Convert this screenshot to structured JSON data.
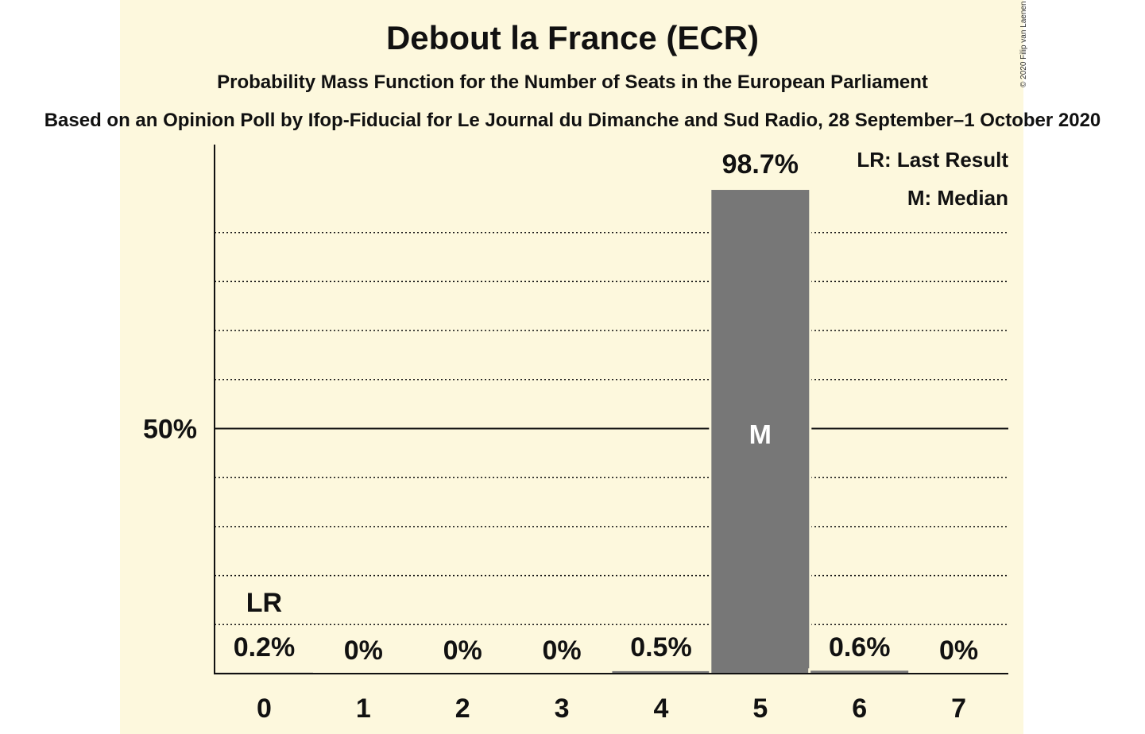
{
  "title": "Debout la France (ECR)",
  "subtitle": "Probability Mass Function for the Number of Seats in the European Parliament",
  "source": "Based on an Opinion Poll by Ifop-Fiducial for Le Journal du Dimanche and Sud Radio, 28 September–1 October 2020",
  "copyright": "© 2020 Filip van Laenen",
  "colors": {
    "background": "#fdf8dd",
    "bar": "#777777",
    "text": "#111111"
  },
  "chart_data": {
    "type": "bar",
    "categories": [
      "0",
      "1",
      "2",
      "3",
      "4",
      "5",
      "6",
      "7"
    ],
    "values": [
      0.2,
      0,
      0,
      0,
      0.5,
      98.7,
      0.6,
      0
    ],
    "value_labels": [
      "0.2%",
      "0%",
      "0%",
      "0%",
      "0.5%",
      "98.7%",
      "0.6%",
      "0%"
    ],
    "ylim": [
      0,
      107.5
    ],
    "y_tick_label": {
      "value": 50,
      "label": "50%"
    },
    "gridlines": [
      10,
      20,
      30,
      40,
      60,
      70,
      80,
      90
    ],
    "last_result": {
      "index": 0,
      "label": "LR"
    },
    "median": {
      "index": 5,
      "label": "M"
    },
    "legend": [
      "LR: Last Result",
      "M: Median"
    ],
    "legend_position": "top-right"
  }
}
